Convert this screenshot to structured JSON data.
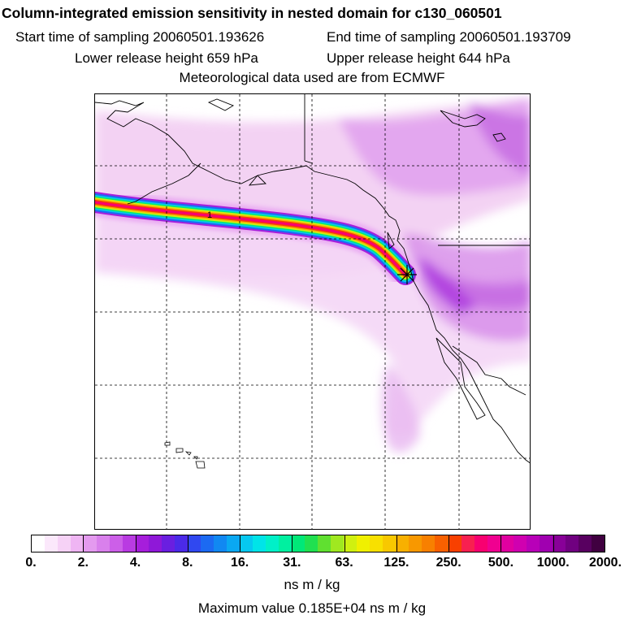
{
  "header": {
    "title": "Column-integrated emission sensitivity in nested domain for c130_060501",
    "start_label": "Start time of sampling 20060501.193626",
    "end_label": "End time of sampling 20060501.193709",
    "lower_label": "Lower release height  659 hPa",
    "upper_label": "Upper release height  644 hPa",
    "met_label": "Meteorological data used are from ECMWF"
  },
  "map": {
    "contour_label": "1",
    "release_marker": "asterisk-release-point"
  },
  "colorbar": {
    "tick_labels": [
      "0.",
      "2.",
      "4.",
      "8.",
      "16.",
      "31.",
      "63.",
      "125.",
      "250.",
      "500.",
      "1000.",
      "2000."
    ],
    "colors": [
      "#ffffff",
      "#fbe8fb",
      "#f6d2f6",
      "#efb5f3",
      "#e49aef",
      "#d980ec",
      "#cc5fe8",
      "#b93be2",
      "#a61edb",
      "#8f18d8",
      "#6a1fe0",
      "#4b2ae8",
      "#3048f0",
      "#1c6af2",
      "#1188f2",
      "#0aa8f2",
      "#06c8f0",
      "#00e4e8",
      "#00f0c8",
      "#00f0a0",
      "#00e878",
      "#20e050",
      "#60e030",
      "#a0e820",
      "#d0f010",
      "#f0f000",
      "#f8e000",
      "#f8c800",
      "#f8b000",
      "#f89800",
      "#f88000",
      "#f86000",
      "#f84000",
      "#f82050",
      "#f80070",
      "#f00090",
      "#e000a0",
      "#d000b0",
      "#b800b8",
      "#a000b0",
      "#880098",
      "#700080",
      "#580060",
      "#400040"
    ],
    "unit_label": "ns m / kg",
    "max_label": "Maximum value  0.185E+04 ns m / kg"
  }
}
